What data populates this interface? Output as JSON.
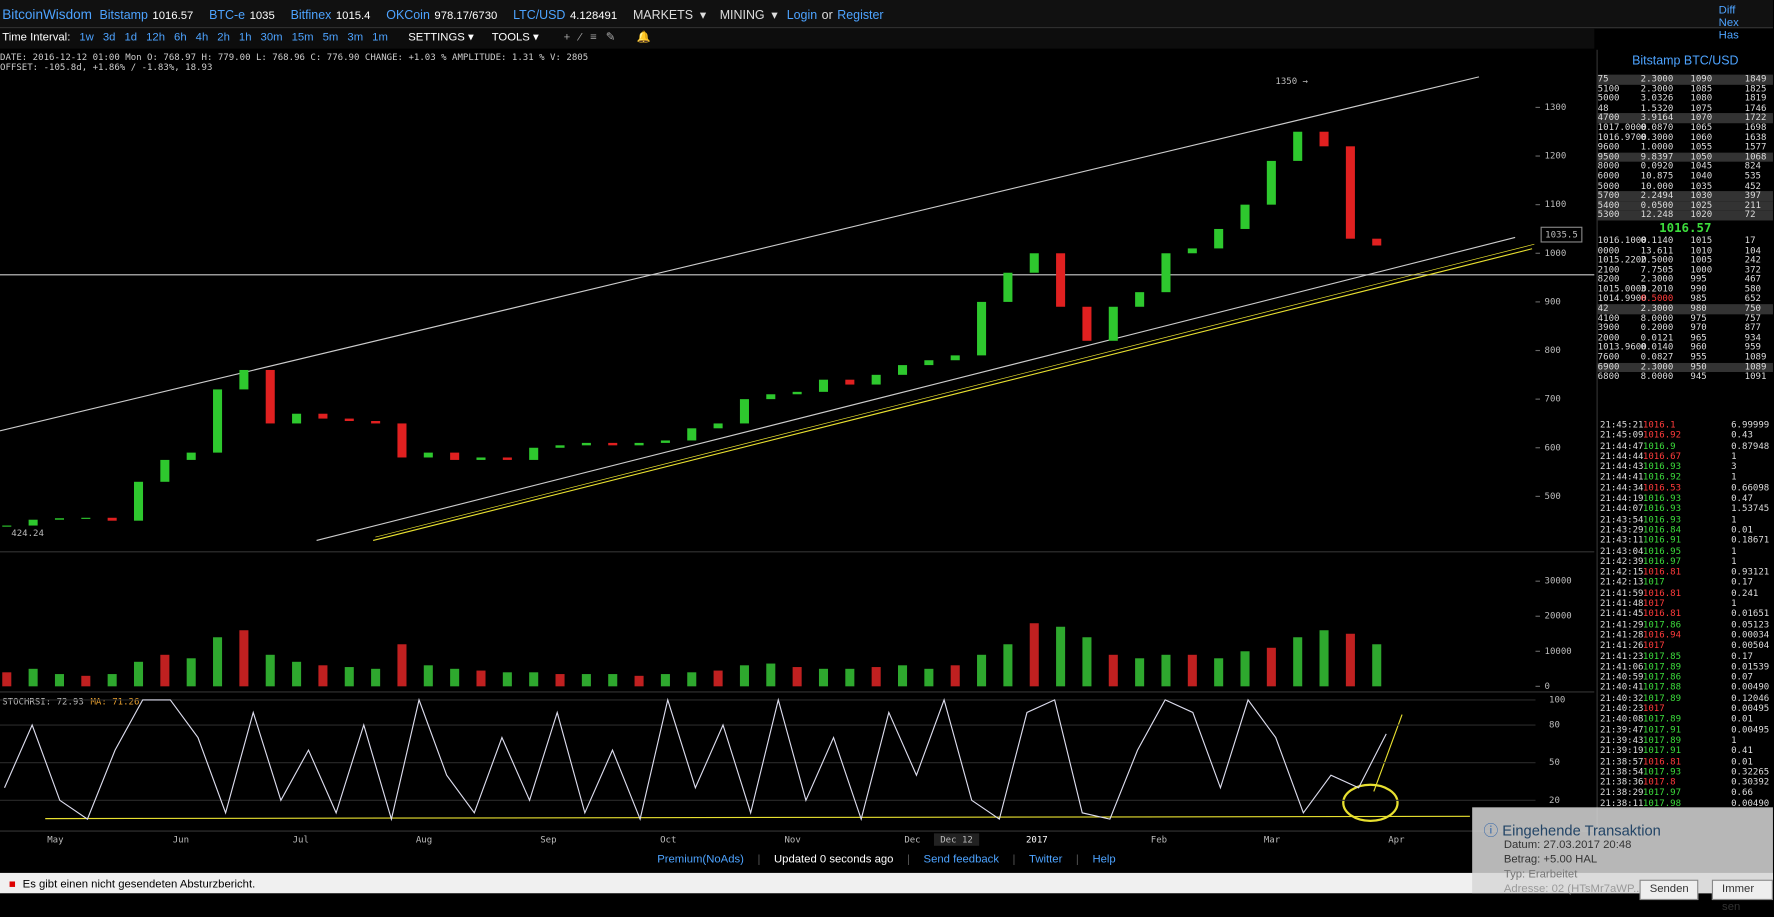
{
  "header": {
    "logo": "BitcoinWisdom",
    "markets": [
      {
        "name": "Bitstamp",
        "price": "1016.57"
      },
      {
        "name": "BTC-e",
        "price": "1035"
      },
      {
        "name": "Bitfinex",
        "price": "1015.4"
      },
      {
        "name": "OKCoin",
        "price": "978.17/6730"
      },
      {
        "name": "LTC/USD",
        "price": "4.128491"
      }
    ],
    "menu_markets": "MARKETS",
    "menu_mining": "MINING",
    "login": "Login",
    "or": "or",
    "register": "Register",
    "right": [
      "Diff",
      "Nex",
      "Has"
    ]
  },
  "toolbar": {
    "label": "Time Interval:",
    "intervals": [
      "1w",
      "3d",
      "1d",
      "12h",
      "6h",
      "4h",
      "2h",
      "1h",
      "30m",
      "15m",
      "5m",
      "3m",
      "1m"
    ],
    "settings": "SETTINGS",
    "tools": "TOOLS"
  },
  "info": {
    "line1": "DATE: 2016-12-12 01:00 Mon   O: 768.97   H: 779.00   L: 768.96   C: 776.90   CHANGE: +1.03 %   AMPLITUDE: 1.31 %   V: 2805",
    "line2": "OFFSET: -105.8d, +1.86% / -1.83%, 18.93"
  },
  "price_chart": {
    "ticks": [
      500,
      600,
      700,
      800,
      900,
      1000,
      1100,
      1200,
      1300
    ],
    "high_label": "1350 →",
    "low_label": "424.24",
    "current_box": "1035.5",
    "weekly_closes": [
      440,
      452,
      455,
      456,
      450,
      530,
      575,
      590,
      720,
      760,
      650,
      670,
      660,
      655,
      650,
      580,
      590,
      575,
      580,
      575,
      600,
      605,
      610,
      605,
      610,
      615,
      640,
      650,
      700,
      710,
      715,
      740,
      730,
      750,
      770,
      780,
      790,
      900,
      960,
      1000,
      890,
      820,
      890,
      920,
      1000,
      1010,
      1050,
      1100,
      1190,
      1250,
      1220,
      1030,
      1016
    ]
  },
  "volume_chart": {
    "ticks": [
      0,
      10000,
      20000,
      30000
    ],
    "weekly_volumes": [
      4000,
      5000,
      3500,
      3000,
      3500,
      7000,
      9000,
      8000,
      14000,
      16000,
      9000,
      7000,
      6000,
      5500,
      5000,
      12000,
      6000,
      5000,
      4500,
      4000,
      4000,
      3500,
      3500,
      3500,
      3000,
      3500,
      4000,
      4500,
      6000,
      6500,
      5500,
      5000,
      5000,
      5500,
      6000,
      5000,
      6000,
      9000,
      12000,
      18000,
      17000,
      14000,
      9000,
      8000,
      9000,
      9000,
      8000,
      10000,
      11000,
      14000,
      16000,
      15000,
      12000
    ]
  },
  "stoch_chart": {
    "label": "STOCHRSI: 72.93",
    "ma_label": "MA: 71.26",
    "ticks": [
      20,
      50,
      80,
      100
    ],
    "values": [
      30,
      80,
      20,
      5,
      60,
      100,
      100,
      70,
      10,
      90,
      20,
      60,
      10,
      80,
      5,
      100,
      40,
      10,
      70,
      20,
      90,
      10,
      60,
      5,
      100,
      30,
      80,
      10,
      100,
      20,
      70,
      5,
      90,
      40,
      100,
      20,
      5,
      90,
      100,
      10,
      5,
      60,
      100,
      90,
      30,
      100,
      70,
      10,
      40,
      30,
      72.93
    ]
  },
  "x_axis": {
    "labels": [
      "May",
      "Jun",
      "Jul",
      "Aug",
      "Sep",
      "Oct",
      "Nov",
      "Dec",
      "2017",
      "Feb",
      "Mar",
      "Apr"
    ],
    "crosshair": "Dec 12"
  },
  "order_book": {
    "title": "Bitstamp BTC/USD",
    "mid_price": "1016.57",
    "asks": [
      [
        "75",
        "2.3000",
        "1090",
        "1849"
      ],
      [
        "5100",
        "2.3000",
        "1085",
        "1825"
      ],
      [
        "5000",
        "3.0326",
        "1080",
        "1819"
      ],
      [
        "48",
        "1.5320",
        "1075",
        "1746"
      ],
      [
        "4700",
        "3.9164",
        "1070",
        "1722"
      ],
      [
        "1017.0000",
        "0.0870",
        "1065",
        "1698"
      ],
      [
        "1016.9700",
        "0.3000",
        "1060",
        "1638"
      ],
      [
        "9600",
        "1.0000",
        "1055",
        "1577"
      ],
      [
        "9500",
        "9.8397",
        "1050",
        "1068"
      ],
      [
        "8000",
        "0.0920",
        "1045",
        "824"
      ],
      [
        "6000",
        "10.875",
        "1040",
        "535"
      ],
      [
        "5000",
        "10.000",
        "1035",
        "452"
      ],
      [
        "5700",
        "2.2494",
        "1030",
        "397"
      ],
      [
        "5400",
        "0.0500",
        "1025",
        "211"
      ],
      [
        "5300",
        "12.248",
        "1020",
        "72"
      ]
    ],
    "bids": [
      [
        "1016.1000",
        "0.1140",
        "1015",
        "17"
      ],
      [
        "0000",
        "13.611",
        "1010",
        "104"
      ],
      [
        "1015.2200",
        "2.5000",
        "1005",
        "242"
      ],
      [
        "2100",
        "7.7505",
        "1000",
        "372"
      ],
      [
        "8200",
        "2.3000",
        "995",
        "467"
      ],
      [
        "1015.0000",
        "3.2010",
        "990",
        "580"
      ],
      [
        "1014.9900",
        "0.5000",
        "985",
        "652"
      ],
      [
        "42",
        "2.3000",
        "980",
        "750"
      ],
      [
        "4100",
        "8.0000",
        "975",
        "757"
      ],
      [
        "3900",
        "0.2000",
        "970",
        "877"
      ],
      [
        "2000",
        "0.0121",
        "965",
        "934"
      ],
      [
        "1013.9600",
        "0.0140",
        "960",
        "959"
      ],
      [
        "7600",
        "0.0827",
        "955",
        "1089"
      ],
      [
        "6900",
        "2.3000",
        "950",
        "1089"
      ],
      [
        "6800",
        "8.0000",
        "945",
        "1091"
      ]
    ]
  },
  "trades": [
    {
      "time": "21:45:21",
      "price": "1016.1",
      "amount": "6.99999",
      "color": "#ff3b3b"
    },
    {
      "time": "21:45:09",
      "price": "1016.92",
      "amount": "0.43",
      "color": "#ff3b3b"
    },
    {
      "time": "21:44:47",
      "price": "1016.9",
      "amount": "0.87948",
      "color": "#3cdc3c"
    },
    {
      "time": "21:44:44",
      "price": "1016.67",
      "amount": "1",
      "color": "#ff3b3b"
    },
    {
      "time": "21:44:43",
      "price": "1016.93",
      "amount": "3",
      "color": "#3cdc3c"
    },
    {
      "time": "21:44:41",
      "price": "1016.92",
      "amount": "1",
      "color": "#3cdc3c"
    },
    {
      "time": "21:44:34",
      "price": "1016.53",
      "amount": "0.66098",
      "color": "#ff3b3b"
    },
    {
      "time": "21:44:19",
      "price": "1016.93",
      "amount": "0.47",
      "color": "#3cdc3c"
    },
    {
      "time": "21:44:07",
      "price": "1016.93",
      "amount": "1.53745",
      "color": "#3cdc3c"
    },
    {
      "time": "21:43:54",
      "price": "1016.93",
      "amount": "1",
      "color": "#3cdc3c"
    },
    {
      "time": "21:43:29",
      "price": "1016.84",
      "amount": "0.01",
      "color": "#3cdc3c"
    },
    {
      "time": "21:43:11",
      "price": "1016.91",
      "amount": "0.18671",
      "color": "#3cdc3c"
    },
    {
      "time": "21:43:04",
      "price": "1016.95",
      "amount": "1",
      "color": "#3cdc3c"
    },
    {
      "time": "21:42:39",
      "price": "1016.97",
      "amount": "1",
      "color": "#3cdc3c"
    },
    {
      "time": "21:42:15",
      "price": "1016.81",
      "amount": "0.93121",
      "color": "#ff3b3b"
    },
    {
      "time": "21:42:13",
      "price": "1017",
      "amount": "0.17",
      "color": "#3cdc3c"
    },
    {
      "time": "21:41:59",
      "price": "1016.81",
      "amount": "0.241",
      "color": "#ff3b3b"
    },
    {
      "time": "21:41:48",
      "price": "1017",
      "amount": "1",
      "color": "#ff3b3b"
    },
    {
      "time": "21:41:45",
      "price": "1016.81",
      "amount": "0.01651",
      "color": "#ff3b3b"
    },
    {
      "time": "21:41:29",
      "price": "1017.86",
      "amount": "0.05123",
      "color": "#3cdc3c"
    },
    {
      "time": "21:41:28",
      "price": "1016.94",
      "amount": "0.00034",
      "color": "#ff3b3b"
    },
    {
      "time": "21:41:26",
      "price": "1017",
      "amount": "0.00504",
      "color": "#ff3b3b"
    },
    {
      "time": "21:41:23",
      "price": "1017.85",
      "amount": "0.17",
      "color": "#3cdc3c"
    },
    {
      "time": "21:41:06",
      "price": "1017.89",
      "amount": "0.01539",
      "color": "#3cdc3c"
    },
    {
      "time": "21:40:59",
      "price": "1017.86",
      "amount": "0.07",
      "color": "#3cdc3c"
    },
    {
      "time": "21:40:41",
      "price": "1017.88",
      "amount": "0.00490",
      "color": "#3cdc3c"
    },
    {
      "time": "21:40:32",
      "price": "1017.89",
      "amount": "0.12046",
      "color": "#3cdc3c"
    },
    {
      "time": "21:40:23",
      "price": "1017",
      "amount": "0.00495",
      "color": "#ff3b3b"
    },
    {
      "time": "21:40:08",
      "price": "1017.89",
      "amount": "0.01",
      "color": "#3cdc3c"
    },
    {
      "time": "21:39:47",
      "price": "1017.91",
      "amount": "0.00495",
      "color": "#3cdc3c"
    },
    {
      "time": "21:39:43",
      "price": "1017.89",
      "amount": "1",
      "color": "#3cdc3c"
    },
    {
      "time": "21:39:19",
      "price": "1017.91",
      "amount": "0.41",
      "color": "#3cdc3c"
    },
    {
      "time": "21:38:57",
      "price": "1016.81",
      "amount": "0.01",
      "color": "#ff3b3b"
    },
    {
      "time": "21:38:54",
      "price": "1017.93",
      "amount": "0.32265",
      "color": "#3cdc3c"
    },
    {
      "time": "21:38:36",
      "price": "1017.8",
      "amount": "0.30392",
      "color": "#ff3b3b"
    },
    {
      "time": "21:38:29",
      "price": "1017.97",
      "amount": "0.66",
      "color": "#3cdc3c"
    },
    {
      "time": "21:38:11",
      "price": "1017.98",
      "amount": "0.00490",
      "color": "#3cdc3c"
    }
  ],
  "footer": [
    "Premium(NoAds)",
    "Updated 0 seconds ago",
    "Send feedback",
    "Twitter",
    "Help"
  ],
  "notification": {
    "title": "Eingehende Transaktion",
    "date": "Datum: 27.03.2017 20:48",
    "amount": "Betrag: +5.00 HAL",
    "type": "Typ: Erarbeitet",
    "address": "Adresse: 02 (HTsMr7aWP...",
    "send": "Senden",
    "always": "Immer sen"
  },
  "crash_bar": "Es gibt einen nicht gesendeten Absturzbericht."
}
